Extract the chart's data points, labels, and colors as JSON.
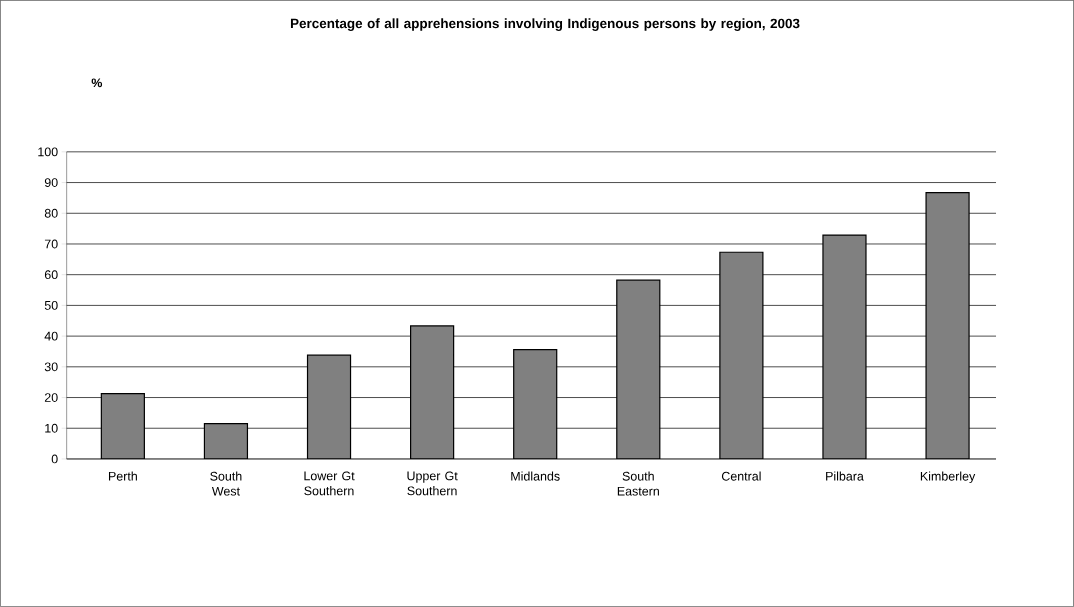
{
  "chart_data": {
    "type": "bar",
    "title": "Percentage of all apprehensions involving Indigenous persons by region, 2003",
    "ylabel": "%",
    "categories": [
      "Perth",
      "South West",
      "Lower Gt Southern",
      "Upper Gt Southern",
      "Midlands",
      "South Eastern",
      "Central",
      "Pilbara",
      "Kimberley"
    ],
    "values": [
      21.3,
      11.5,
      33.8,
      43.3,
      35.6,
      58.2,
      67.3,
      72.9,
      86.7
    ],
    "color": "#808080",
    "ylim": [
      0,
      100
    ],
    "yticks": [
      0,
      10,
      20,
      30,
      40,
      50,
      60,
      70,
      80,
      90,
      100
    ],
    "grid": "y"
  }
}
